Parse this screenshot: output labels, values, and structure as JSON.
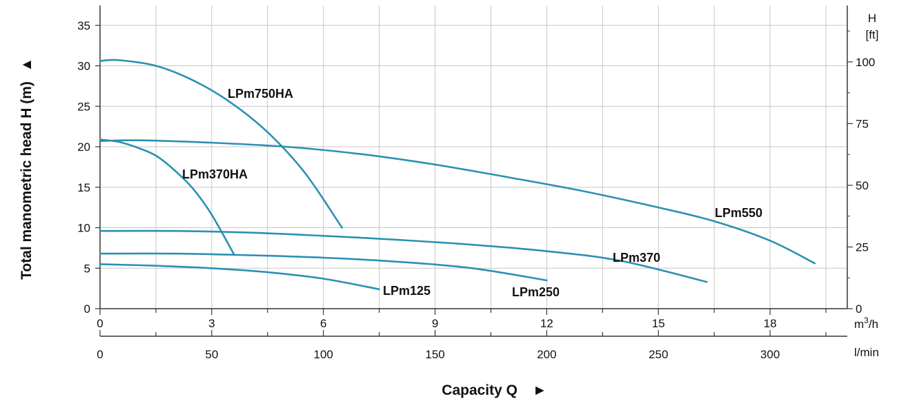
{
  "chart_data": {
    "type": "line",
    "title": "",
    "ylabel": "Total manometric head H (m)",
    "ylabel_arrow": "▲",
    "xlabel": "Capacity Q",
    "xlabel_arrow": "►",
    "y_left": {
      "ticks": [
        "0",
        "5",
        "10",
        "15",
        "20",
        "25",
        "30",
        "35"
      ],
      "range": [
        0,
        37.5
      ]
    },
    "y_right": {
      "unit_name": "H",
      "unit": "[ft]",
      "ticks": [
        "0",
        "25",
        "50",
        "75",
        "100"
      ]
    },
    "x_top": {
      "unit": "m",
      "unit_sup": "3",
      "unit_suffix": "/h",
      "ticks": [
        "0",
        "3",
        "6",
        "9",
        "12",
        "15",
        "18"
      ],
      "range": [
        0,
        20
      ]
    },
    "x_bottom": {
      "unit": "l/min",
      "ticks": [
        "0",
        "50",
        "100",
        "150",
        "200",
        "250",
        "300"
      ]
    },
    "grid": true,
    "line_color": "#2b90b3",
    "series": [
      {
        "name": "LPm750HA",
        "x": [
          0,
          0.5,
          1.5,
          2.5,
          3.5,
          4.5,
          5.5,
          6.5
        ],
        "y": [
          30.6,
          30.7,
          30.0,
          28.2,
          25.5,
          21.8,
          16.8,
          10.0
        ]
      },
      {
        "name": "LPm550",
        "x": [
          0,
          1,
          3,
          5,
          7,
          9,
          11,
          13,
          15,
          16.5,
          18,
          19.2
        ],
        "y": [
          20.7,
          20.8,
          20.5,
          20.0,
          19.1,
          17.8,
          16.2,
          14.5,
          12.5,
          10.8,
          8.4,
          5.6
        ]
      },
      {
        "name": "LPm370HA",
        "x": [
          0,
          0.5,
          1.0,
          1.5,
          2.0,
          2.5,
          3.0,
          3.6
        ],
        "y": [
          20.9,
          20.6,
          19.9,
          18.9,
          17.1,
          14.8,
          11.6,
          6.7
        ]
      },
      {
        "name": "LPm370",
        "x": [
          0,
          2,
          4,
          6,
          8,
          10,
          12,
          14,
          16.3
        ],
        "y": [
          9.6,
          9.6,
          9.4,
          9.0,
          8.5,
          7.9,
          7.1,
          5.9,
          3.3
        ]
      },
      {
        "name": "LPm250",
        "x": [
          0,
          2,
          4,
          6,
          8,
          10,
          12
        ],
        "y": [
          6.8,
          6.8,
          6.6,
          6.3,
          5.8,
          5.0,
          3.5
        ]
      },
      {
        "name": "LPm125",
        "x": [
          0,
          1.5,
          3,
          4.5,
          6,
          7.5
        ],
        "y": [
          5.5,
          5.3,
          5.0,
          4.5,
          3.7,
          2.4
        ]
      }
    ]
  }
}
